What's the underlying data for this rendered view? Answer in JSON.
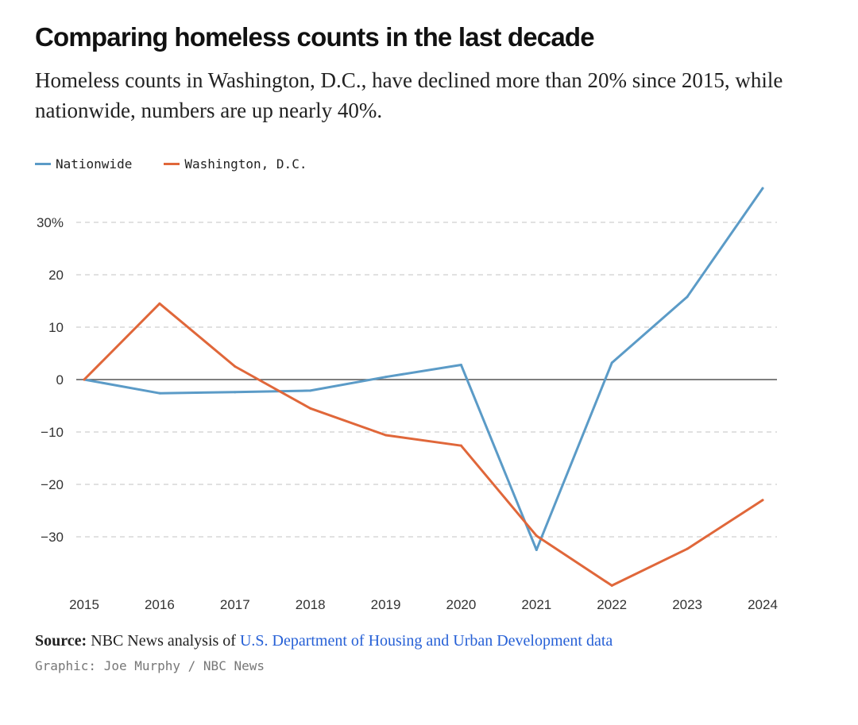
{
  "header": {
    "title": "Comparing homeless counts in the last decade",
    "subtitle": "Homeless counts in Washington, D.C., have declined more than 20% since 2015, while nationwide, numbers are up nearly 40%."
  },
  "colors": {
    "nationwide": "#5b9bc7",
    "dc": "#e0673a",
    "grid": "#cfcfcf",
    "zero_line": "#555555"
  },
  "chart_data": {
    "type": "line",
    "title": "Comparing homeless counts in the last decade",
    "xlabel": "",
    "ylabel": "",
    "categories": [
      "2015",
      "2016",
      "2017",
      "2018",
      "2019",
      "2020",
      "2021",
      "2022",
      "2023",
      "2024"
    ],
    "y_ticks": [
      30,
      20,
      10,
      0,
      -10,
      -20,
      -30
    ],
    "y_tick_labels": [
      "30%",
      "20",
      "10",
      "0",
      "−10",
      "−20",
      "−30"
    ],
    "ylim": [
      -40,
      37
    ],
    "legend": "top-left",
    "series": [
      {
        "name": "Nationwide",
        "color": "#5b9bc7",
        "values": [
          0,
          -2.6,
          -2.4,
          -2.1,
          0.5,
          2.8,
          -32.5,
          3.2,
          15.8,
          36.5
        ]
      },
      {
        "name": "Washington, D.C.",
        "color": "#e0673a",
        "values": [
          0,
          14.5,
          2.5,
          -5.5,
          -10.6,
          -12.6,
          -29.8,
          -39.3,
          -32.3,
          -23
        ]
      }
    ]
  },
  "footer": {
    "source_label": "Source:",
    "source_text": "NBC News analysis of",
    "source_link": "U.S. Department of Housing and Urban Development data",
    "credit": "Graphic: Joe Murphy / NBC News"
  }
}
